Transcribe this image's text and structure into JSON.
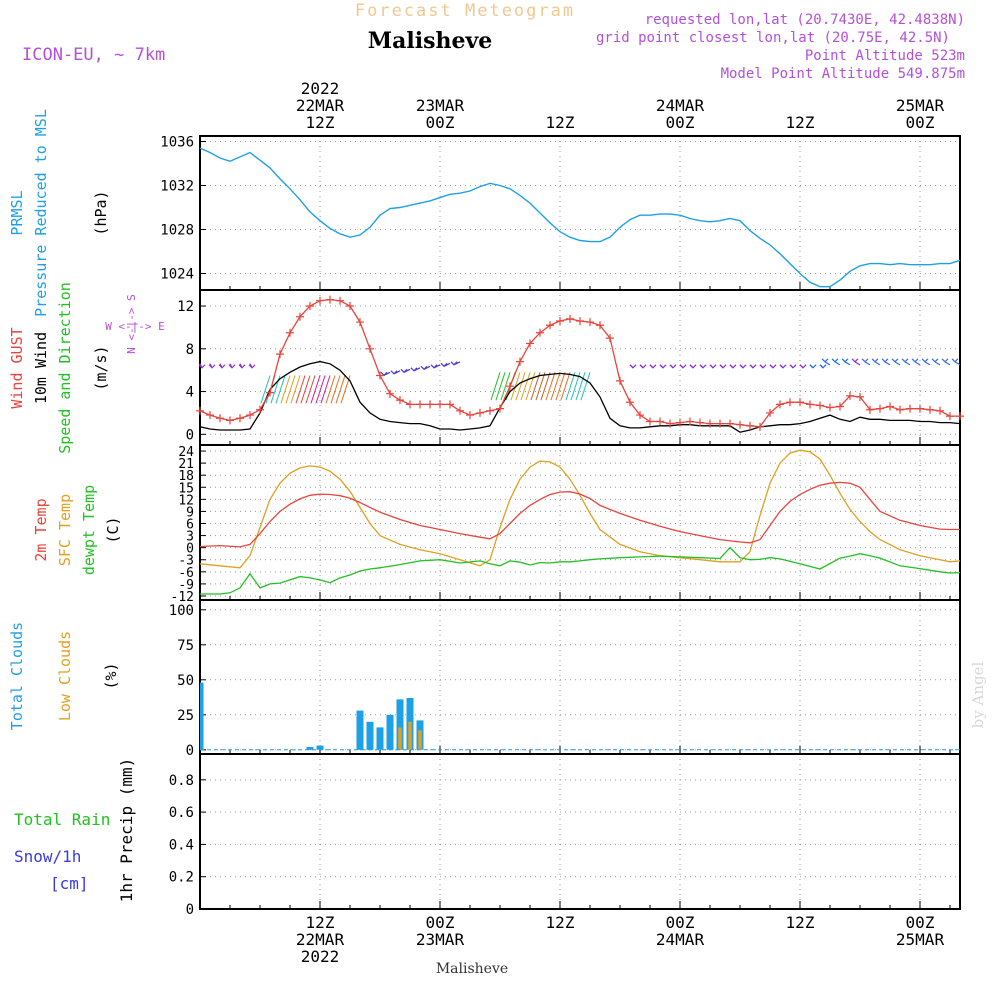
{
  "header": {
    "product_title": "Forecast Meteogram",
    "location": "Malisheve",
    "model": "ICON-EU, ~ 7km",
    "requested": "requested lon,lat (20.7430E, 42.4838N)",
    "grid_point": "grid point closest lon,lat (20.75E, 42.5N)",
    "point_altitude": "Point Altitude 523m",
    "model_altitude": "Model Point Altitude 549.875m",
    "footer_location": "Malisheve",
    "credit": "by Angel"
  },
  "colors": {
    "pressure": "#1ea0e6",
    "gust": "#e8443c",
    "wind": "#000000",
    "temp2m": "#e8443c",
    "sfc": "#e0a020",
    "dew": "#22c022",
    "total_clouds": "#1ea0e6",
    "low_clouds": "#e0a020",
    "rain": "#22c022",
    "snow": "#3a3ae0",
    "meta": "#b450d8",
    "title_faint": "#f0c890",
    "arrow_purple": "#8e2bd6"
  },
  "time_axis": {
    "top_ticks": [
      {
        "t": 12,
        "lines": [
          "2022",
          "22MAR",
          "12Z"
        ]
      },
      {
        "t": 24,
        "lines": [
          "23MAR",
          "00Z"
        ]
      },
      {
        "t": 36,
        "lines": [
          "12Z"
        ]
      },
      {
        "t": 48,
        "lines": [
          "24MAR",
          "00Z"
        ]
      },
      {
        "t": 60,
        "lines": [
          "12Z"
        ]
      },
      {
        "t": 72,
        "lines": [
          "25MAR",
          "00Z"
        ]
      }
    ],
    "bottom_ticks": [
      {
        "t": 12,
        "lines": [
          "12Z",
          "22MAR",
          "2022"
        ]
      },
      {
        "t": 24,
        "lines": [
          "00Z",
          "23MAR"
        ]
      },
      {
        "t": 36,
        "lines": [
          "12Z"
        ]
      },
      {
        "t": 48,
        "lines": [
          "00Z",
          "24MAR"
        ]
      },
      {
        "t": 60,
        "lines": [
          "12Z"
        ]
      },
      {
        "t": 72,
        "lines": [
          "00Z",
          "25MAR"
        ]
      }
    ]
  },
  "chart_data": [
    {
      "type": "line",
      "id": "pressure",
      "ylabels": [
        "PRMSL",
        "Pressure Reduced to MSL",
        "(hPa)"
      ],
      "ylim": [
        1022.5,
        1036.5
      ],
      "yticks": [
        1024,
        1028,
        1032,
        1036
      ],
      "series": [
        {
          "name": "PRMSL",
          "x": [
            0,
            1,
            2,
            3,
            4,
            5,
            6,
            7,
            8,
            9,
            10,
            11,
            12,
            13,
            14,
            15,
            16,
            17,
            18,
            19,
            20,
            21,
            22,
            23,
            24,
            25,
            26,
            27,
            28,
            29,
            30,
            31,
            32,
            33,
            34,
            35,
            36,
            37,
            38,
            39,
            40,
            41,
            42,
            43,
            44,
            45,
            46,
            47,
            48,
            49,
            50,
            51,
            52,
            53,
            54,
            55,
            56,
            57,
            58,
            59,
            60,
            61,
            62,
            63,
            64,
            65,
            66,
            67,
            68,
            69,
            70,
            71,
            72,
            73,
            74,
            75,
            76
          ],
          "values": [
            1035.4,
            1035.0,
            1034.5,
            1034.2,
            1034.6,
            1035.0,
            1034.3,
            1033.6,
            1032.6,
            1031.7,
            1030.7,
            1029.6,
            1028.8,
            1028.1,
            1027.6,
            1027.3,
            1027.5,
            1028.2,
            1029.3,
            1029.9,
            1030.0,
            1030.2,
            1030.4,
            1030.6,
            1030.9,
            1031.2,
            1031.3,
            1031.5,
            1031.9,
            1032.2,
            1032.0,
            1031.7,
            1031.1,
            1030.4,
            1029.5,
            1028.6,
            1027.8,
            1027.3,
            1027.0,
            1026.9,
            1026.9,
            1027.3,
            1028.2,
            1028.9,
            1029.3,
            1029.3,
            1029.4,
            1029.4,
            1029.3,
            1029.0,
            1028.8,
            1028.7,
            1028.8,
            1029.0,
            1028.8,
            1027.9,
            1027.2,
            1026.6,
            1025.8,
            1024.9,
            1024.0,
            1023.2,
            1022.8,
            1022.8,
            1023.4,
            1024.2,
            1024.7,
            1024.9,
            1024.9,
            1024.8,
            1024.9,
            1024.8,
            1024.8,
            1024.8,
            1024.9,
            1024.9,
            1025.2
          ]
        }
      ]
    },
    {
      "type": "line",
      "id": "wind",
      "ylabels": [
        "Wind GUST",
        "10m Wind",
        "Speed and Direction",
        "(m/s)"
      ],
      "compass": [
        "N",
        "W <-|-> E",
        "S"
      ],
      "ylim": [
        -1,
        13.5
      ],
      "yticks": [
        0,
        4,
        8,
        12
      ],
      "series": [
        {
          "name": "Wind GUST",
          "x": [
            0,
            1,
            2,
            3,
            4,
            5,
            6,
            7,
            8,
            9,
            10,
            11,
            12,
            13,
            14,
            15,
            16,
            17,
            18,
            19,
            20,
            21,
            22,
            23,
            24,
            25,
            26,
            27,
            28,
            29,
            30,
            31,
            32,
            33,
            34,
            35,
            36,
            37,
            38,
            39,
            40,
            41,
            42,
            43,
            44,
            45,
            46,
            47,
            48,
            49,
            50,
            51,
            52,
            53,
            54,
            55,
            56,
            57,
            58,
            59,
            60,
            61,
            62,
            63,
            64,
            65,
            66,
            67,
            68,
            69,
            70,
            71,
            72,
            73,
            74,
            75,
            76
          ],
          "values": [
            2.2,
            1.8,
            1.5,
            1.3,
            1.5,
            1.8,
            2.3,
            3.9,
            7.5,
            9.5,
            11.0,
            12.0,
            12.5,
            12.6,
            12.5,
            12.0,
            10.5,
            8.0,
            5.5,
            3.8,
            3.2,
            2.8,
            2.8,
            2.8,
            2.8,
            2.8,
            2.2,
            1.8,
            2.0,
            2.2,
            2.4,
            4.5,
            6.8,
            8.5,
            9.5,
            10.2,
            10.6,
            10.8,
            10.6,
            10.5,
            10.2,
            9.0,
            5.0,
            3.0,
            1.8,
            1.2,
            1.2,
            1.0,
            1.1,
            1.2,
            1.1,
            1.0,
            1.0,
            1.0,
            0.9,
            0.8,
            0.7,
            2.0,
            2.8,
            3.0,
            3.0,
            2.8,
            2.7,
            2.5,
            2.6,
            3.6,
            3.5,
            2.3,
            2.4,
            2.6,
            2.3,
            2.4,
            2.4,
            2.3,
            2.2,
            1.7,
            1.7
          ]
        },
        {
          "name": "10m Wind",
          "x": [
            0,
            1,
            2,
            3,
            4,
            5,
            6,
            7,
            8,
            9,
            10,
            11,
            12,
            13,
            14,
            15,
            16,
            17,
            18,
            19,
            20,
            21,
            22,
            23,
            24,
            25,
            26,
            27,
            28,
            29,
            30,
            31,
            32,
            33,
            34,
            35,
            36,
            37,
            38,
            39,
            40,
            41,
            42,
            43,
            44,
            45,
            46,
            47,
            48,
            49,
            50,
            51,
            52,
            53,
            54,
            55,
            56,
            57,
            58,
            59,
            60,
            61,
            62,
            63,
            64,
            65,
            66,
            67,
            68,
            69,
            70,
            71,
            72,
            73,
            74,
            75,
            76
          ],
          "values": [
            0.7,
            0.5,
            0.4,
            0.4,
            0.4,
            0.5,
            2.0,
            4.2,
            5.2,
            5.8,
            6.3,
            6.6,
            6.8,
            6.6,
            6.0,
            5.0,
            3.0,
            2.0,
            1.4,
            1.2,
            1.1,
            1.0,
            1.0,
            0.8,
            0.5,
            0.5,
            0.4,
            0.5,
            0.6,
            0.8,
            2.5,
            4.0,
            4.8,
            5.2,
            5.5,
            5.6,
            5.7,
            5.6,
            5.4,
            4.8,
            3.5,
            1.5,
            0.8,
            0.6,
            0.6,
            0.7,
            0.8,
            0.8,
            0.9,
            0.9,
            0.8,
            0.8,
            0.8,
            0.8,
            0.2,
            0.4,
            0.7,
            0.8,
            0.9,
            0.9,
            1.0,
            1.2,
            1.5,
            1.8,
            1.4,
            1.2,
            1.6,
            1.4,
            1.4,
            1.3,
            1.3,
            1.3,
            1.2,
            1.2,
            1.1,
            1.1,
            1.0
          ]
        }
      ]
    },
    {
      "type": "line",
      "id": "temperature",
      "ylabels": [
        "2m Temp",
        "SFC Temp",
        "dewpt Temp",
        "(C)"
      ],
      "ylim": [
        -13,
        25.5
      ],
      "yticks": [
        -12,
        -9,
        -6,
        -3,
        0,
        3,
        6,
        9,
        12,
        15,
        18,
        21,
        24
      ],
      "series": [
        {
          "name": "2m Temp",
          "x": [
            0,
            2,
            4,
            5,
            6,
            7,
            8,
            9,
            10,
            11,
            12,
            13,
            14,
            15,
            16,
            17,
            18,
            20,
            22,
            24,
            26,
            28,
            29,
            30,
            31,
            32,
            33,
            34,
            35,
            36,
            37,
            38,
            39,
            40,
            42,
            44,
            46,
            48,
            50,
            52,
            54,
            55,
            56,
            57,
            58,
            59,
            60,
            61,
            62,
            63,
            64,
            65,
            66,
            67,
            68,
            70,
            72,
            74,
            75,
            76
          ],
          "values": [
            0.3,
            0.5,
            0.2,
            0.8,
            3.5,
            6.5,
            9.0,
            10.8,
            12.1,
            13.0,
            13.3,
            13.2,
            12.9,
            12.3,
            11.2,
            10.0,
            8.8,
            7.0,
            5.5,
            4.5,
            3.5,
            2.6,
            2.2,
            3.5,
            6.0,
            8.5,
            10.5,
            12.0,
            13.2,
            13.8,
            13.9,
            13.3,
            12.2,
            10.5,
            8.5,
            6.8,
            5.3,
            4.0,
            3.0,
            2.0,
            1.4,
            1.2,
            2.0,
            5.5,
            9.0,
            11.5,
            13.2,
            14.5,
            15.5,
            16.0,
            16.2,
            16.0,
            15.0,
            12.0,
            9.0,
            6.8,
            5.5,
            4.6,
            4.5,
            4.5
          ]
        },
        {
          "name": "SFC Temp",
          "x": [
            0,
            2,
            4,
            5,
            6,
            7,
            8,
            9,
            10,
            11,
            12,
            13,
            14,
            15,
            16,
            17,
            18,
            20,
            22,
            24,
            26,
            28,
            29,
            30,
            31,
            32,
            33,
            34,
            35,
            36,
            37,
            38,
            39,
            40,
            42,
            44,
            46,
            48,
            50,
            52,
            54,
            55,
            56,
            57,
            58,
            59,
            60,
            61,
            62,
            63,
            64,
            65,
            66,
            67,
            68,
            70,
            72,
            74,
            75,
            76
          ],
          "values": [
            -4.0,
            -4.5,
            -5.0,
            -2.0,
            5.0,
            12.0,
            16.0,
            18.5,
            19.8,
            20.3,
            20.0,
            19.0,
            17.0,
            14.0,
            10.0,
            6.0,
            3.0,
            0.8,
            -0.5,
            -1.5,
            -3.0,
            -4.5,
            -3.0,
            5.0,
            12.0,
            17.0,
            20.0,
            21.5,
            21.3,
            20.0,
            17.0,
            13.0,
            8.5,
            4.5,
            0.8,
            -1.0,
            -2.0,
            -2.5,
            -3.0,
            -3.5,
            -3.5,
            -1.0,
            8.0,
            16.0,
            21.0,
            23.5,
            24.2,
            23.8,
            22.0,
            18.0,
            13.5,
            9.5,
            6.5,
            4.0,
            2.0,
            -0.5,
            -2.0,
            -3.0,
            -3.5,
            -3.3
          ]
        },
        {
          "name": "dewpt Temp",
          "x": [
            0,
            2,
            3,
            4,
            5,
            6,
            7,
            8,
            9,
            10,
            11,
            12,
            13,
            14,
            15,
            16,
            17,
            18,
            20,
            22,
            24,
            26,
            28,
            29,
            30,
            31,
            32,
            33,
            34,
            35,
            36,
            37,
            38,
            39,
            40,
            42,
            44,
            46,
            48,
            50,
            52,
            53,
            54,
            55,
            56,
            57,
            58,
            60,
            62,
            64,
            65,
            66,
            67,
            68,
            70,
            72,
            74,
            75,
            76
          ],
          "values": [
            -11.5,
            -11.5,
            -11.2,
            -10.0,
            -6.5,
            -10.0,
            -9.0,
            -8.8,
            -8.0,
            -7.2,
            -7.5,
            -8.0,
            -8.7,
            -7.5,
            -6.8,
            -5.8,
            -5.3,
            -5.0,
            -4.2,
            -3.3,
            -3.0,
            -3.8,
            -3.3,
            -4.0,
            -4.5,
            -3.3,
            -3.6,
            -4.3,
            -3.7,
            -3.8,
            -3.5,
            -3.5,
            -3.3,
            -3.0,
            -2.8,
            -2.5,
            -2.3,
            -2.1,
            -2.3,
            -2.5,
            -2.7,
            0.0,
            -2.5,
            -3.0,
            -2.9,
            -2.5,
            -2.8,
            -4.0,
            -5.3,
            -2.6,
            -2.1,
            -1.5,
            -2.0,
            -2.6,
            -4.5,
            -5.2,
            -6.0,
            -6.3,
            -6.2
          ]
        }
      ]
    },
    {
      "type": "bar",
      "id": "clouds",
      "ylabels": [
        "Total Clouds",
        "Low Clouds",
        "(%)"
      ],
      "ylim": [
        -3,
        107
      ],
      "yticks": [
        0,
        25,
        50,
        75,
        100
      ],
      "series": [
        {
          "name": "Total Clouds",
          "x": [
            0,
            11,
            12,
            16,
            17,
            18,
            19,
            20,
            21,
            22,
            23
          ],
          "values": [
            48,
            2,
            3,
            28,
            20,
            16,
            25,
            36,
            37,
            21,
            0
          ]
        },
        {
          "name": "Low Clouds",
          "x": [
            20,
            21,
            22
          ],
          "values": [
            16,
            20,
            14
          ]
        }
      ]
    },
    {
      "type": "line",
      "id": "precip",
      "ylabels": [
        "Total Rain",
        "Snow/1h",
        "[cm]",
        "1hr Precip (mm)"
      ],
      "ylim": [
        0,
        0.96
      ],
      "yticks": [
        0,
        0.2,
        0.4,
        0.6,
        0.8
      ],
      "ytick_labels": [
        "0",
        "0.2",
        "0.4",
        "0.6",
        "0.8"
      ],
      "series": [
        {
          "name": "Total Rain",
          "x": [
            0,
            76
          ],
          "values": [
            0,
            0
          ]
        },
        {
          "name": "Snow/1h",
          "x": [
            0,
            76
          ],
          "values": [
            0,
            0
          ]
        }
      ]
    }
  ]
}
